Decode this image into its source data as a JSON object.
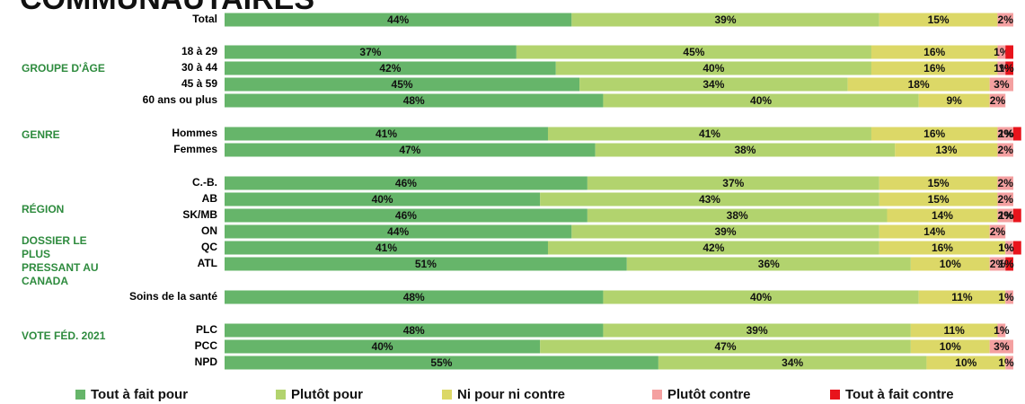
{
  "chart_data": {
    "type": "stacked-bar-horizontal",
    "title": "COMMUNAUTAIRES",
    "xlim": [
      0,
      100
    ],
    "groups": [
      "GROUPE D'ÂGE",
      "GENRE",
      "RÉGION",
      "DOSSIER LE PLUS PRESSANT AU CANADA",
      "VOTE FÉD. 2021"
    ],
    "categories": [
      "Total",
      "18 à 29",
      "30 à 44",
      "45 à 59",
      "60 ans ou plus",
      "Hommes",
      "Femmes",
      "C.-B.",
      "AB",
      "SK/MB",
      "ON",
      "QC",
      "ATL",
      "Soins de la santé",
      "PLC",
      "PCC",
      "NPD"
    ],
    "series": [
      {
        "name": "Tout à fait pour",
        "color": "#66b56a",
        "values": [
          44,
          37,
          42,
          45,
          48,
          41,
          47,
          46,
          40,
          46,
          44,
          41,
          51,
          48,
          48,
          40,
          55
        ],
        "value_labels": [
          "44%",
          "37%",
          "42%",
          "45%",
          "48%",
          "41%",
          "47%",
          "46%",
          "40%",
          "46%",
          "44%",
          "41%",
          "51%",
          "48%",
          "48%",
          "40%",
          "55%"
        ]
      },
      {
        "name": "Plutôt pour",
        "color": "#b2d36e",
        "values": [
          39,
          45,
          40,
          34,
          40,
          41,
          38,
          37,
          43,
          38,
          39,
          42,
          36,
          40,
          39,
          47,
          34
        ],
        "value_labels": [
          "39%",
          "45%",
          "40%",
          "34%",
          "40%",
          "41%",
          "38%",
          "37%",
          "43%",
          "38%",
          "39%",
          "42%",
          "36%",
          "40%",
          "39%",
          "47%",
          "34%"
        ]
      },
      {
        "name": "Ni pour ni contre",
        "color": "#dcd867",
        "values": [
          15,
          16,
          16,
          18,
          9,
          16,
          13,
          15,
          15,
          14,
          14,
          16,
          10,
          11,
          11,
          10,
          10
        ],
        "value_labels": [
          "15%",
          "16%",
          "16%",
          "18%",
          "9%",
          "16%",
          "13%",
          "15%",
          "15%",
          "14%",
          "14%",
          "16%",
          "10%",
          "11%",
          "11%",
          "10%",
          "10%"
        ]
      },
      {
        "name": "Plutôt contre",
        "color": "#f4a0a0",
        "values": [
          2,
          1,
          1,
          3,
          2,
          2,
          2,
          2,
          2,
          2,
          2,
          1,
          2,
          1,
          1,
          3,
          1
        ],
        "value_labels": [
          "2%",
          "1%",
          "1%",
          "3%",
          "2%",
          "2%",
          "2%",
          "2%",
          "2%",
          "2%",
          "2%",
          "1%",
          "2%",
          "1%",
          "1%",
          "3%",
          "1%"
        ]
      },
      {
        "name": "Tout à fait contre",
        "color": "#e8141c",
        "values": [
          0,
          1,
          1,
          0,
          0,
          1,
          0,
          0,
          0,
          1,
          0,
          1,
          1,
          0,
          0,
          0,
          0
        ],
        "value_labels": [
          null,
          null,
          "1%",
          null,
          null,
          "1%",
          null,
          null,
          null,
          "1%",
          null,
          "1%",
          "1%",
          null,
          null,
          null,
          null
        ]
      }
    ]
  }
}
